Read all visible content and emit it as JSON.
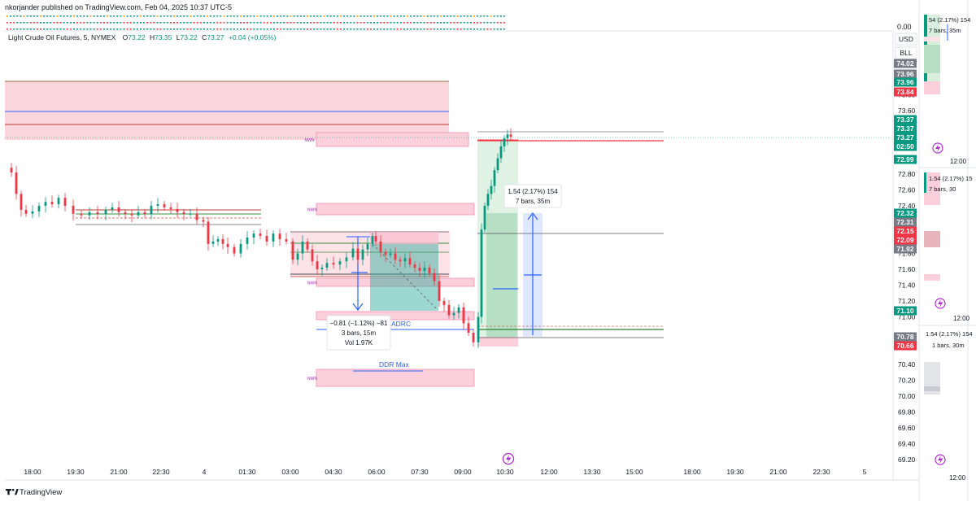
{
  "header": {
    "publisher": "nkorjander published on TradingView.com, Feb 04, 2025 10:37 UTC-5"
  },
  "legend": {
    "symbol": "Light Crude Oil Futures, 5, NYMEX",
    "o_label": "O",
    "o": "73.22",
    "h_label": "H",
    "h": "73.35",
    "l_label": "L",
    "l": "73.22",
    "c_label": "C",
    "c": "73.27",
    "change": "+0.04 (+0.05%)"
  },
  "top_right": {
    "currency": "USD",
    "mode": "BLL",
    "oscillator_zero": "0.00"
  },
  "footer": {
    "brand": "TradingView"
  },
  "colors": {
    "up": "#089981",
    "down": "#f23645",
    "zone_fill": "#f7c5cf",
    "zone_border": "#f48fb1",
    "blue": "#2962ff",
    "green_measure": "#4caf50",
    "grid_text": "#131722"
  },
  "chart_data": {
    "type": "candlestick",
    "title": "Light Crude Oil Futures, 5, NYMEX",
    "ylim": [
      69.1,
      74.3
    ],
    "y_ticks": [
      69.2,
      69.4,
      69.6,
      69.8,
      70.0,
      70.2,
      70.4,
      71.0,
      71.2,
      71.4,
      71.6,
      71.8,
      72.4,
      72.6,
      72.8,
      73.6,
      73.8
    ],
    "x_ticks": [
      "18:00",
      "19:30",
      "21:00",
      "22:30",
      "4",
      "01:30",
      "03:00",
      "04:30",
      "06:00",
      "07:30",
      "09:00",
      "10:30",
      "12:00",
      "13:30",
      "15:00",
      "18:00",
      "19:30",
      "21:00",
      "22:30",
      "5"
    ],
    "price_badges": [
      {
        "label": "74.02",
        "color": "#787b86"
      },
      {
        "label": "73.96",
        "color": "#787b86"
      },
      {
        "label": "73.96",
        "color": "#089981"
      },
      {
        "label": "73.84",
        "color": "#f23645"
      },
      {
        "label": "73.37",
        "color": "#089981"
      },
      {
        "label": "73.37",
        "color": "#089981"
      },
      {
        "label": "73.27",
        "color": "#089981"
      },
      {
        "label": "02:50",
        "color": "#089981"
      },
      {
        "label": "72.99",
        "color": "#089981"
      },
      {
        "label": "72.32",
        "color": "#089981"
      },
      {
        "label": "72.31",
        "color": "#787b86"
      },
      {
        "label": "72.15",
        "color": "#f23645"
      },
      {
        "label": "72.09",
        "color": "#f23645"
      },
      {
        "label": "71.92",
        "color": "#787b86"
      },
      {
        "label": "71.10",
        "color": "#089981"
      },
      {
        "label": "70.78",
        "color": "#787b86"
      },
      {
        "label": "70.66",
        "color": "#f23645"
      }
    ],
    "zone_labels": [
      "NWN",
      "NWN",
      "NWN",
      "NWN"
    ],
    "annotations": {
      "drop_measure": {
        "line1": "−0.81 (−1.12%) −81",
        "line2": "3 bars, 15m",
        "line3": "Vol 1.97K"
      },
      "rise_measure": {
        "line1": "1.54 (2.17%) 154",
        "line2": "7 bars, 35m"
      },
      "ddr_max": "DDR Max",
      "adrc": "ADRC"
    },
    "series": [
      {
        "name": "Light Crude Oil Futures",
        "ohlc_x": [],
        "note": ""
      }
    ]
  },
  "side_panels": {
    "panel1": {
      "measure": "54 (2.17%) 154",
      "bars": "7 bars, 35m",
      "time": "12:00"
    },
    "panel2": {
      "measure": "1.54 (2.17%) 15",
      "bars": "7 bars, 30",
      "time": "12:00"
    },
    "panel3": {
      "measure": "1.54 (2.17%) 154",
      "bars": "1 bars, 30m",
      "time": "12:00"
    }
  }
}
